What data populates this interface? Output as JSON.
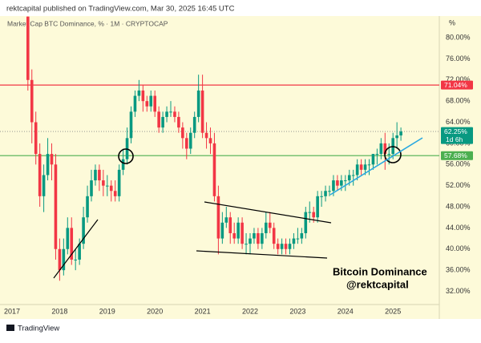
{
  "chart_data": {
    "type": "candlestick",
    "header": "rektcapital published on TradingView.com, Mar 30, 2025 16:45 UTC",
    "title": "Market Cap BTC Dominance, % · 1M · CRYPTOCAP",
    "axis_unit": "%",
    "annotation": [
      "Bitcoin Dominance",
      "@rektcapital"
    ],
    "footer": "TradingView",
    "up_color": "#089981",
    "down_color": "#f23645",
    "grid": false,
    "categories": [
      "2017",
      null,
      null,
      null,
      null,
      null,
      null,
      null,
      null,
      null,
      null,
      null,
      "2018",
      null,
      null,
      null,
      null,
      null,
      null,
      null,
      null,
      null,
      null,
      null,
      "2019",
      null,
      null,
      null,
      null,
      null,
      null,
      null,
      null,
      null,
      null,
      null,
      "2020",
      null,
      null,
      null,
      null,
      null,
      null,
      null,
      null,
      null,
      null,
      null,
      "2021",
      null,
      null,
      null,
      null,
      null,
      null,
      null,
      null,
      null,
      null,
      null,
      "2022",
      null,
      null,
      null,
      null,
      null,
      null,
      null,
      null,
      null,
      null,
      null,
      "2023",
      null,
      null,
      null,
      null,
      null,
      null,
      null,
      null,
      null,
      null,
      null,
      "2024",
      null,
      null,
      null,
      null,
      null,
      null,
      null,
      null,
      null,
      null,
      null,
      "2025",
      null,
      null
    ],
    "open": [
      null,
      null,
      null,
      null,
      84,
      72,
      64,
      58,
      50,
      54,
      58,
      56,
      40,
      36,
      40,
      44,
      38,
      38,
      41,
      46,
      50,
      53,
      55,
      53,
      52,
      52,
      51,
      50,
      55,
      57,
      61,
      66,
      69,
      70,
      68,
      67,
      69,
      66,
      63,
      65,
      66,
      66,
      65,
      63,
      61,
      59,
      62,
      65,
      70,
      62,
      61,
      60,
      50,
      42,
      45,
      46,
      43,
      42,
      45,
      41,
      41,
      42,
      43,
      41,
      43,
      45,
      44,
      41,
      40,
      41,
      40,
      41,
      42,
      42,
      43,
      47,
      47,
      46,
      50,
      50,
      51,
      51,
      53,
      52,
      53,
      53,
      54,
      54,
      56,
      55,
      56,
      56,
      58,
      58,
      60,
      58,
      58,
      61,
      61.5
    ],
    "high": [
      null,
      null,
      null,
      null,
      84,
      74,
      66,
      60,
      56,
      61,
      60,
      58,
      42,
      42,
      46,
      46,
      40,
      42,
      48,
      52,
      55,
      56,
      56,
      55,
      54,
      53,
      53,
      56,
      59,
      63,
      67,
      70,
      72,
      71,
      69,
      70,
      70,
      67,
      66,
      67,
      68,
      67,
      66,
      64,
      62,
      63,
      66,
      73,
      73,
      64,
      63,
      62,
      52,
      47,
      48,
      47,
      45,
      46,
      46,
      43,
      43,
      44,
      44,
      44,
      47,
      47,
      45,
      42,
      42,
      42,
      42,
      43,
      44,
      44,
      48,
      49,
      48,
      51,
      51,
      52,
      52,
      54,
      54,
      54,
      54,
      55,
      55,
      57,
      57,
      57,
      57,
      58,
      59,
      61,
      62,
      60,
      62,
      64,
      63
    ],
    "low": [
      null,
      null,
      null,
      null,
      70,
      60,
      56,
      48,
      47,
      53,
      53,
      38,
      34,
      35,
      39,
      37,
      36,
      37,
      40,
      45,
      49,
      52,
      51,
      50,
      50,
      49,
      49,
      49,
      54,
      56,
      60,
      65,
      68,
      66,
      66,
      66,
      65,
      62,
      62,
      64,
      65,
      64,
      62,
      59,
      57,
      58,
      61,
      64,
      61,
      59,
      58,
      49,
      39,
      41,
      44,
      41,
      41,
      41,
      40,
      39,
      39,
      41,
      40,
      40,
      42,
      43,
      40,
      39,
      39,
      39,
      39,
      40,
      41,
      41,
      42,
      45,
      45,
      45,
      48,
      49,
      50,
      50,
      51,
      51,
      51,
      52,
      52,
      53,
      54,
      54,
      54,
      55,
      56,
      57,
      55,
      56,
      57,
      59,
      60.5
    ],
    "close": [
      null,
      null,
      null,
      null,
      72,
      64,
      58,
      50,
      54,
      58,
      56,
      40,
      36,
      40,
      44,
      38,
      38,
      41,
      46,
      50,
      53,
      55,
      53,
      52,
      52,
      51,
      50,
      55,
      57,
      61,
      66,
      69,
      70,
      68,
      67,
      69,
      66,
      63,
      65,
      66,
      66,
      65,
      63,
      61,
      59,
      62,
      65,
      70,
      62,
      61,
      60,
      50,
      42,
      45,
      46,
      43,
      42,
      45,
      41,
      41,
      42,
      43,
      41,
      43,
      45,
      44,
      41,
      40,
      41,
      40,
      41,
      42,
      42,
      43,
      47,
      47,
      46,
      50,
      50,
      51,
      51,
      53,
      52,
      53,
      53,
      54,
      54,
      56,
      55,
      56,
      56,
      58,
      58,
      60,
      58,
      58,
      61,
      61.5,
      62.25
    ],
    "ylim": [
      29.5,
      84.1
    ],
    "yticks": [
      {
        "value": 32,
        "label": "32.00%"
      },
      {
        "value": 36,
        "label": "36.00%"
      },
      {
        "value": 40,
        "label": "40.00%"
      },
      {
        "value": 44,
        "label": "44.00%"
      },
      {
        "value": 48,
        "label": "48.00%"
      },
      {
        "value": 52,
        "label": "52.00%"
      },
      {
        "value": 56,
        "label": "56.00%"
      },
      {
        "value": 60,
        "label": "60.00%"
      },
      {
        "value": 64,
        "label": "64.00%"
      },
      {
        "value": 68,
        "label": "68.00%"
      },
      {
        "value": 72,
        "label": "72.00%"
      },
      {
        "value": 76,
        "label": "76.00%"
      },
      {
        "value": 80,
        "label": "80.00%"
      }
    ],
    "levels": [
      {
        "value": 71.04,
        "label": "71.04%",
        "color": "#f23645",
        "style": "solid"
      },
      {
        "value": 57.68,
        "label": "57.68%",
        "color": "#4caf50",
        "style": "solid"
      },
      {
        "value": 62.25,
        "label": "62.25%",
        "countdown": "1d 6h",
        "color": "#089981",
        "style": "dotted"
      }
    ]
  }
}
